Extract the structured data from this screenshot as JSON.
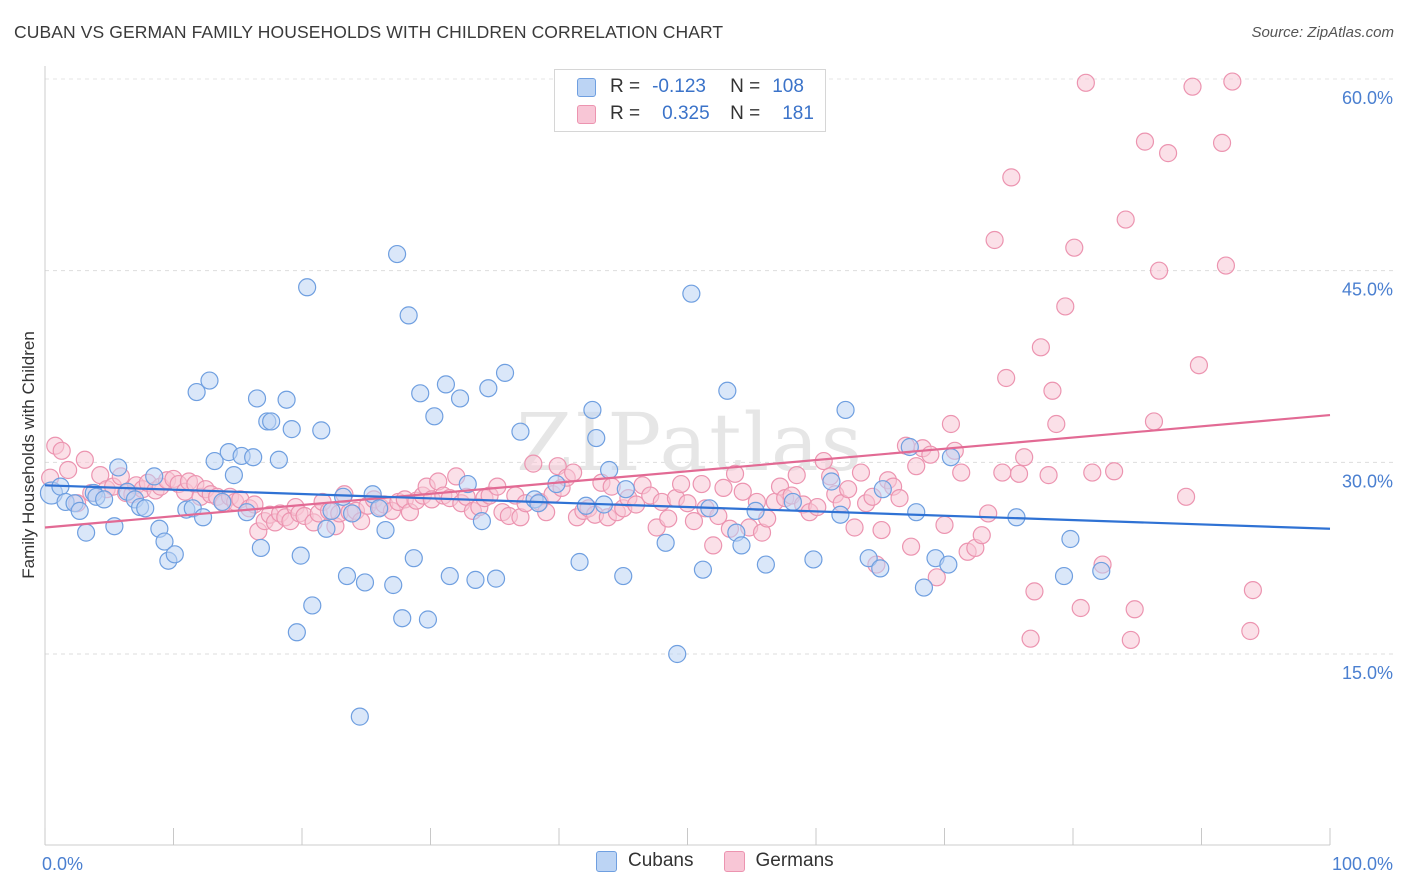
{
  "title": "CUBAN VS GERMAN FAMILY HOUSEHOLDS WITH CHILDREN CORRELATION CHART",
  "source": "Source: ZipAtlas.com",
  "watermark": "ZIPatlas",
  "colors": {
    "cuban_fill": "#bcd4f4",
    "cuban_stroke": "#6f9fe0",
    "cuban_line": "#2f72d4",
    "german_fill": "#f8c6d6",
    "german_stroke": "#ec94b0",
    "german_line": "#e26a94",
    "tick_text": "#4a7fd0"
  },
  "legend": {
    "rows": [
      {
        "r_label": "R =",
        "r_value": "-0.123",
        "n_label": "N =",
        "n_value": "108"
      },
      {
        "r_label": "R =",
        "r_value": "0.325",
        "n_label": "N =",
        "n_value": "181"
      }
    ]
  },
  "bottom_legend": [
    "Cubans",
    "Germans"
  ],
  "chart_data": {
    "type": "scatter",
    "title": "CUBAN VS GERMAN FAMILY HOUSEHOLDS WITH CHILDREN CORRELATION CHART",
    "xlabel": "",
    "ylabel": "Family Households with Children",
    "xlim": [
      0,
      100
    ],
    "ylim": [
      0,
      62
    ],
    "x_tick_labels": [
      "0.0%",
      "100.0%"
    ],
    "y_ticks": [
      15,
      30,
      45,
      60
    ],
    "y_tick_labels": [
      "15.0%",
      "30.0%",
      "45.0%",
      "60.0%"
    ],
    "grid": true,
    "legend_position": "top-center",
    "series": [
      {
        "name": "Cubans",
        "r": -0.123,
        "n": 108,
        "trend": {
          "x": [
            0,
            100
          ],
          "y": [
            28.2,
            24.8
          ]
        },
        "points": [
          [
            0.5,
            27.6
          ],
          [
            1.2,
            28.1
          ],
          [
            1.6,
            26.9
          ],
          [
            2.3,
            26.8
          ],
          [
            2.7,
            26.2
          ],
          [
            3.2,
            24.5
          ],
          [
            3.8,
            27.6
          ],
          [
            4.0,
            27.3
          ],
          [
            4.6,
            27.1
          ],
          [
            5.4,
            25.0
          ],
          [
            5.7,
            29.6
          ],
          [
            6.4,
            27.7
          ],
          [
            7.0,
            27.1
          ],
          [
            7.4,
            26.5
          ],
          [
            7.8,
            26.4
          ],
          [
            8.5,
            28.9
          ],
          [
            8.9,
            24.8
          ],
          [
            9.3,
            23.8
          ],
          [
            9.6,
            22.3
          ],
          [
            10.1,
            22.8
          ],
          [
            11.0,
            26.3
          ],
          [
            11.5,
            26.4
          ],
          [
            11.8,
            35.5
          ],
          [
            12.3,
            25.7
          ],
          [
            12.8,
            36.4
          ],
          [
            13.2,
            30.1
          ],
          [
            13.8,
            26.9
          ],
          [
            14.3,
            30.8
          ],
          [
            14.7,
            29.0
          ],
          [
            15.3,
            30.5
          ],
          [
            15.7,
            26.1
          ],
          [
            16.2,
            30.4
          ],
          [
            16.5,
            35.0
          ],
          [
            16.8,
            23.3
          ],
          [
            17.3,
            33.2
          ],
          [
            17.6,
            33.2
          ],
          [
            18.2,
            30.2
          ],
          [
            18.8,
            34.9
          ],
          [
            19.2,
            32.6
          ],
          [
            19.6,
            16.7
          ],
          [
            19.9,
            22.7
          ],
          [
            20.4,
            43.7
          ],
          [
            20.8,
            18.8
          ],
          [
            21.5,
            32.5
          ],
          [
            21.9,
            24.8
          ],
          [
            22.3,
            26.2
          ],
          [
            23.2,
            27.3
          ],
          [
            23.5,
            21.1
          ],
          [
            23.9,
            26.0
          ],
          [
            24.5,
            10.1
          ],
          [
            24.9,
            20.6
          ],
          [
            25.5,
            27.5
          ],
          [
            26.0,
            26.4
          ],
          [
            26.5,
            24.7
          ],
          [
            27.1,
            20.4
          ],
          [
            27.4,
            46.3
          ],
          [
            27.8,
            17.8
          ],
          [
            28.3,
            41.5
          ],
          [
            28.7,
            22.5
          ],
          [
            29.2,
            35.4
          ],
          [
            29.8,
            17.7
          ],
          [
            30.3,
            33.6
          ],
          [
            31.2,
            36.1
          ],
          [
            31.5,
            21.1
          ],
          [
            32.3,
            35.0
          ],
          [
            32.9,
            28.3
          ],
          [
            33.5,
            20.8
          ],
          [
            34.0,
            25.4
          ],
          [
            34.5,
            35.8
          ],
          [
            35.1,
            20.9
          ],
          [
            35.8,
            37.0
          ],
          [
            37.0,
            32.4
          ],
          [
            38.1,
            27.1
          ],
          [
            38.4,
            26.8
          ],
          [
            39.8,
            28.3
          ],
          [
            41.6,
            22.2
          ],
          [
            42.1,
            26.6
          ],
          [
            42.6,
            34.1
          ],
          [
            42.9,
            31.9
          ],
          [
            43.5,
            26.7
          ],
          [
            43.9,
            29.4
          ],
          [
            45.0,
            21.1
          ],
          [
            45.2,
            27.9
          ],
          [
            48.3,
            23.7
          ],
          [
            49.2,
            15.0
          ],
          [
            50.3,
            43.2
          ],
          [
            51.2,
            21.6
          ],
          [
            51.7,
            26.4
          ],
          [
            53.1,
            35.6
          ],
          [
            53.8,
            24.5
          ],
          [
            54.2,
            23.5
          ],
          [
            55.3,
            26.2
          ],
          [
            56.1,
            22.0
          ],
          [
            58.2,
            26.9
          ],
          [
            59.8,
            22.4
          ],
          [
            61.2,
            28.5
          ],
          [
            61.9,
            25.9
          ],
          [
            62.3,
            34.1
          ],
          [
            64.1,
            22.5
          ],
          [
            65.0,
            21.7
          ],
          [
            65.2,
            27.9
          ],
          [
            67.3,
            31.2
          ],
          [
            67.8,
            26.1
          ],
          [
            68.4,
            20.2
          ],
          [
            69.3,
            22.5
          ],
          [
            70.3,
            22.0
          ],
          [
            70.5,
            30.4
          ],
          [
            75.6,
            25.7
          ],
          [
            79.3,
            21.1
          ],
          [
            79.8,
            24.0
          ],
          [
            82.2,
            21.5
          ]
        ]
      },
      {
        "name": "Germans",
        "r": 0.325,
        "n": 181,
        "trend": {
          "x": [
            0,
            100
          ],
          "y": [
            24.9,
            33.7
          ]
        },
        "points": [
          [
            0.4,
            28.8
          ],
          [
            0.8,
            31.3
          ],
          [
            1.3,
            30.9
          ],
          [
            1.8,
            29.4
          ],
          [
            2.5,
            26.8
          ],
          [
            3.1,
            30.2
          ],
          [
            3.6,
            27.6
          ],
          [
            4.3,
            29.0
          ],
          [
            4.8,
            27.9
          ],
          [
            5.3,
            28.1
          ],
          [
            5.9,
            28.9
          ],
          [
            6.3,
            27.6
          ],
          [
            6.8,
            27.5
          ],
          [
            7.1,
            28.2
          ],
          [
            7.6,
            27.9
          ],
          [
            8.0,
            28.4
          ],
          [
            8.6,
            27.8
          ],
          [
            9.0,
            28.1
          ],
          [
            9.5,
            28.6
          ],
          [
            10.0,
            28.7
          ],
          [
            10.4,
            28.3
          ],
          [
            10.9,
            27.7
          ],
          [
            11.2,
            28.5
          ],
          [
            11.7,
            28.3
          ],
          [
            12.1,
            27.3
          ],
          [
            12.5,
            27.9
          ],
          [
            12.9,
            27.5
          ],
          [
            13.4,
            27.3
          ],
          [
            13.9,
            26.8
          ],
          [
            14.4,
            27.3
          ],
          [
            14.8,
            26.9
          ],
          [
            15.2,
            27.1
          ],
          [
            15.9,
            26.4
          ],
          [
            16.3,
            26.7
          ],
          [
            16.6,
            24.6
          ],
          [
            17.1,
            25.4
          ],
          [
            17.5,
            25.9
          ],
          [
            17.9,
            25.3
          ],
          [
            18.3,
            26.0
          ],
          [
            18.7,
            25.7
          ],
          [
            19.1,
            25.4
          ],
          [
            19.5,
            26.5
          ],
          [
            19.8,
            26.0
          ],
          [
            20.2,
            25.8
          ],
          [
            20.9,
            25.3
          ],
          [
            21.3,
            26.0
          ],
          [
            21.6,
            26.9
          ],
          [
            22.1,
            26.2
          ],
          [
            22.6,
            25.0
          ],
          [
            22.9,
            26.0
          ],
          [
            23.3,
            27.5
          ],
          [
            23.7,
            26.1
          ],
          [
            24.2,
            26.2
          ],
          [
            24.6,
            25.4
          ],
          [
            25.1,
            26.6
          ],
          [
            25.6,
            27.1
          ],
          [
            26.1,
            26.5
          ],
          [
            26.4,
            26.7
          ],
          [
            27.0,
            26.2
          ],
          [
            27.5,
            26.9
          ],
          [
            28.0,
            27.1
          ],
          [
            28.4,
            26.1
          ],
          [
            28.9,
            27.0
          ],
          [
            29.4,
            27.4
          ],
          [
            29.7,
            28.1
          ],
          [
            30.1,
            27.1
          ],
          [
            30.6,
            28.5
          ],
          [
            31.0,
            27.4
          ],
          [
            31.5,
            27.2
          ],
          [
            32.0,
            28.9
          ],
          [
            32.4,
            26.8
          ],
          [
            32.8,
            27.3
          ],
          [
            33.3,
            26.2
          ],
          [
            33.8,
            26.5
          ],
          [
            34.2,
            27.2
          ],
          [
            34.6,
            27.4
          ],
          [
            35.2,
            28.1
          ],
          [
            35.6,
            26.1
          ],
          [
            36.1,
            25.8
          ],
          [
            36.6,
            27.4
          ],
          [
            37.0,
            25.7
          ],
          [
            37.4,
            26.8
          ],
          [
            38.0,
            29.9
          ],
          [
            38.5,
            26.9
          ],
          [
            39.0,
            26.1
          ],
          [
            39.5,
            27.5
          ],
          [
            39.9,
            29.7
          ],
          [
            40.2,
            28.0
          ],
          [
            40.6,
            28.8
          ],
          [
            41.1,
            29.2
          ],
          [
            41.4,
            25.7
          ],
          [
            41.9,
            26.2
          ],
          [
            42.3,
            26.4
          ],
          [
            42.8,
            25.9
          ],
          [
            43.3,
            28.4
          ],
          [
            43.8,
            25.7
          ],
          [
            44.1,
            28.1
          ],
          [
            44.5,
            26.1
          ],
          [
            45.0,
            26.4
          ],
          [
            45.4,
            27.2
          ],
          [
            46.0,
            26.7
          ],
          [
            46.5,
            28.2
          ],
          [
            47.1,
            27.4
          ],
          [
            47.6,
            24.9
          ],
          [
            48.0,
            26.9
          ],
          [
            48.5,
            25.6
          ],
          [
            49.1,
            27.2
          ],
          [
            49.5,
            28.3
          ],
          [
            50.0,
            26.8
          ],
          [
            50.5,
            25.4
          ],
          [
            51.1,
            28.3
          ],
          [
            51.4,
            26.4
          ],
          [
            52.0,
            23.5
          ],
          [
            52.4,
            25.8
          ],
          [
            52.8,
            28.0
          ],
          [
            53.3,
            24.8
          ],
          [
            53.7,
            29.1
          ],
          [
            54.3,
            27.7
          ],
          [
            54.8,
            24.9
          ],
          [
            55.4,
            26.9
          ],
          [
            55.8,
            24.5
          ],
          [
            56.2,
            25.6
          ],
          [
            56.8,
            26.9
          ],
          [
            57.2,
            28.1
          ],
          [
            57.6,
            27.2
          ],
          [
            58.1,
            27.4
          ],
          [
            58.5,
            29.0
          ],
          [
            59.0,
            26.7
          ],
          [
            59.5,
            26.1
          ],
          [
            60.1,
            26.5
          ],
          [
            60.6,
            30.1
          ],
          [
            61.1,
            28.9
          ],
          [
            61.5,
            27.5
          ],
          [
            62.0,
            26.8
          ],
          [
            62.5,
            27.9
          ],
          [
            63.0,
            24.9
          ],
          [
            63.5,
            29.2
          ],
          [
            63.9,
            26.8
          ],
          [
            64.4,
            27.3
          ],
          [
            64.7,
            22.0
          ],
          [
            65.1,
            24.7
          ],
          [
            65.6,
            28.6
          ],
          [
            66.0,
            28.1
          ],
          [
            66.5,
            27.2
          ],
          [
            67.0,
            31.3
          ],
          [
            67.4,
            23.4
          ],
          [
            67.8,
            29.7
          ],
          [
            68.3,
            31.1
          ],
          [
            68.9,
            30.6
          ],
          [
            69.4,
            21.0
          ],
          [
            70.0,
            25.1
          ],
          [
            70.5,
            33.0
          ],
          [
            70.8,
            30.9
          ],
          [
            71.3,
            29.2
          ],
          [
            71.8,
            23.0
          ],
          [
            72.4,
            23.3
          ],
          [
            72.9,
            24.3
          ],
          [
            73.4,
            26.0
          ],
          [
            73.9,
            47.4
          ],
          [
            74.5,
            29.2
          ],
          [
            74.8,
            36.6
          ],
          [
            75.2,
            52.3
          ],
          [
            75.8,
            29.1
          ],
          [
            76.2,
            30.4
          ],
          [
            76.7,
            16.2
          ],
          [
            77.0,
            19.9
          ],
          [
            77.5,
            39.0
          ],
          [
            78.1,
            29.0
          ],
          [
            78.4,
            35.6
          ],
          [
            78.7,
            33.0
          ],
          [
            79.4,
            42.2
          ],
          [
            80.1,
            46.8
          ],
          [
            80.6,
            18.6
          ],
          [
            81.0,
            59.7
          ],
          [
            81.5,
            29.2
          ],
          [
            82.3,
            22.0
          ],
          [
            83.2,
            29.3
          ],
          [
            84.1,
            49.0
          ],
          [
            84.5,
            16.1
          ],
          [
            84.8,
            18.5
          ],
          [
            85.6,
            55.1
          ],
          [
            86.3,
            33.2
          ],
          [
            86.7,
            45.0
          ],
          [
            87.4,
            54.2
          ],
          [
            88.8,
            27.3
          ],
          [
            89.3,
            59.4
          ],
          [
            89.8,
            37.6
          ],
          [
            91.6,
            55.0
          ],
          [
            91.9,
            45.4
          ],
          [
            92.4,
            59.8
          ],
          [
            93.8,
            16.8
          ],
          [
            94.0,
            20.0
          ]
        ]
      }
    ]
  }
}
